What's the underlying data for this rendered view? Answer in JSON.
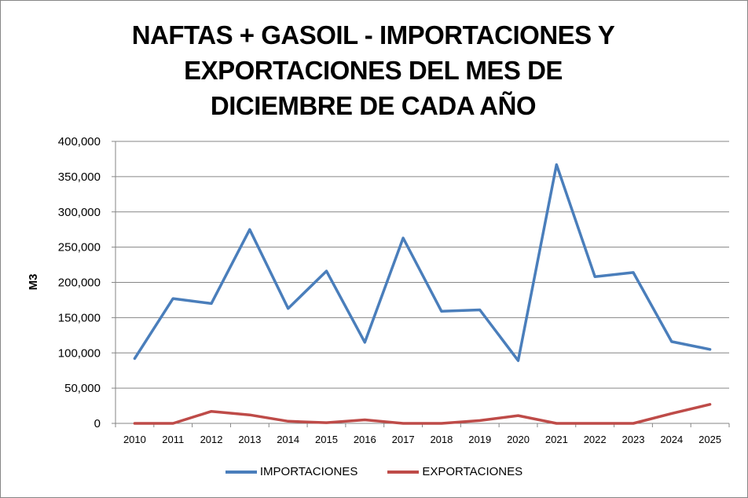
{
  "chart_data": {
    "type": "line",
    "title": "NAFTAS + GASOIL - IMPORTACIONES Y EXPORTACIONES DEL MES DE DICIEMBRE DE CADA AÑO",
    "title_lines": [
      "NAFTAS + GASOIL - IMPORTACIONES Y",
      "EXPORTACIONES DEL MES DE",
      "DICIEMBRE DE CADA AÑO"
    ],
    "xlabel": "",
    "ylabel": "M3",
    "ylim": [
      0,
      400000
    ],
    "yticks": [
      "0",
      "50,000",
      "100,000",
      "150,000",
      "200,000",
      "250,000",
      "300,000",
      "350,000",
      "400,000"
    ],
    "ytick_values": [
      0,
      50000,
      100000,
      150000,
      200000,
      250000,
      300000,
      350000,
      400000
    ],
    "grid": true,
    "legend_position": "bottom",
    "categories": [
      "2010",
      "2011",
      "2012",
      "2013",
      "2014",
      "2015",
      "2016",
      "2017",
      "2018",
      "2019",
      "2020",
      "2021",
      "2022",
      "2023",
      "2024",
      "2025"
    ],
    "series": [
      {
        "name": "IMPORTACIONES",
        "color": "#4a7ebb",
        "values": [
          92000,
          177000,
          170000,
          275000,
          163000,
          216000,
          115000,
          263000,
          159000,
          161000,
          89000,
          367000,
          208000,
          214000,
          116000,
          105000
        ]
      },
      {
        "name": "EXPORTACIONES",
        "color": "#be4b48",
        "values": [
          0,
          0,
          17000,
          12000,
          3000,
          1000,
          5000,
          0,
          0,
          4000,
          11000,
          0,
          0,
          0,
          14000,
          27000
        ]
      }
    ]
  }
}
